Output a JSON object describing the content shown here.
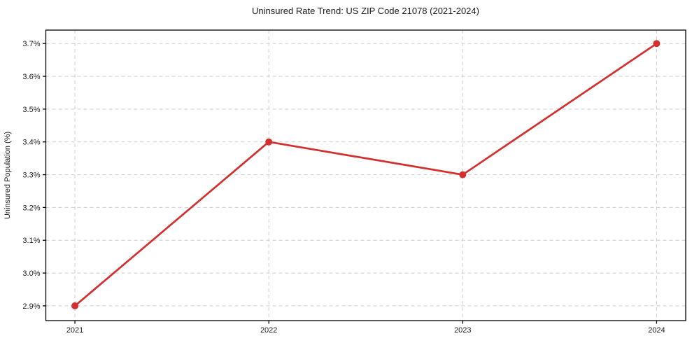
{
  "chart_data": {
    "type": "line",
    "title": "Uninsured Rate Trend: US ZIP Code 21078 (2021-2024)",
    "xlabel": "",
    "ylabel": "Uninsured Population (%)",
    "x": [
      2021,
      2022,
      2023,
      2024
    ],
    "values": [
      2.9,
      3.4,
      3.3,
      3.7
    ],
    "xticks": [
      2021,
      2022,
      2023,
      2024
    ],
    "xtick_labels": [
      "2021",
      "2022",
      "2023",
      "2024"
    ],
    "yticks": [
      2.9,
      3.0,
      3.1,
      3.2,
      3.3,
      3.4,
      3.5,
      3.6,
      3.7
    ],
    "ytick_labels": [
      "2.9%",
      "3.0%",
      "3.1%",
      "3.2%",
      "3.3%",
      "3.4%",
      "3.5%",
      "3.6%",
      "3.7%"
    ],
    "xlim": [
      2020.85,
      2024.15
    ],
    "ylim": [
      2.855,
      3.741
    ],
    "grid": true,
    "legend": "none",
    "line_color": "#d32f2f",
    "marker": "circle",
    "marker_color": "#d32f2f",
    "grid_color": "#cccccc",
    "spine_color": "#000000",
    "background_color": "#ffffff"
  }
}
